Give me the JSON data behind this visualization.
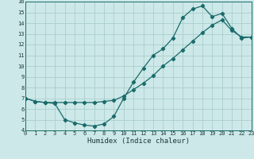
{
  "xlabel": "Humidex (Indice chaleur)",
  "bg_color": "#cde8e8",
  "grid_color": "#aacece",
  "line_color": "#1a6b6b",
  "marker": "D",
  "markersize": 2.2,
  "linewidth": 0.9,
  "series1_x": [
    0,
    1,
    2,
    3,
    4,
    5,
    6,
    7,
    8,
    9,
    10,
    11,
    12,
    13,
    14,
    15,
    16,
    17,
    18,
    19,
    20,
    21,
    22,
    23
  ],
  "series1_y": [
    7.0,
    6.7,
    6.6,
    6.5,
    5.0,
    4.7,
    4.5,
    4.4,
    4.6,
    5.3,
    7.0,
    8.5,
    9.8,
    11.0,
    11.6,
    12.6,
    14.5,
    15.3,
    15.6,
    14.6,
    14.9,
    13.5,
    12.6,
    12.7
  ],
  "series2_x": [
    0,
    1,
    2,
    3,
    4,
    5,
    6,
    7,
    8,
    9,
    10,
    11,
    12,
    13,
    14,
    15,
    16,
    17,
    18,
    19,
    20,
    21,
    22,
    23
  ],
  "series2_y": [
    7.0,
    6.7,
    6.6,
    6.6,
    6.6,
    6.6,
    6.6,
    6.6,
    6.7,
    6.8,
    7.2,
    7.8,
    8.4,
    9.1,
    10.0,
    10.7,
    11.5,
    12.3,
    13.1,
    13.8,
    14.3,
    13.3,
    12.7,
    12.7
  ],
  "xlim": [
    0,
    23
  ],
  "ylim": [
    4,
    16
  ],
  "xticks": [
    0,
    1,
    2,
    3,
    4,
    5,
    6,
    7,
    8,
    9,
    10,
    11,
    12,
    13,
    14,
    15,
    16,
    17,
    18,
    19,
    20,
    21,
    22,
    23
  ],
  "yticks": [
    4,
    5,
    6,
    7,
    8,
    9,
    10,
    11,
    12,
    13,
    14,
    15,
    16
  ],
  "tick_fontsize": 5.0,
  "xlabel_fontsize": 6.5
}
